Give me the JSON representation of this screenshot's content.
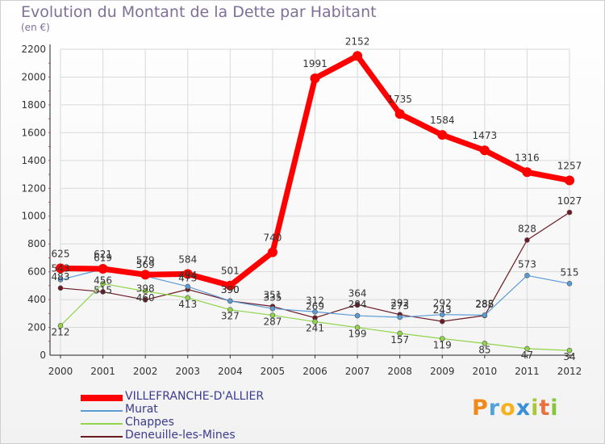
{
  "title": "Evolution du Montant de la Dette par Habitant",
  "subtitle": "(en €)",
  "brand": {
    "letters": [
      "P",
      "r",
      "o",
      "x",
      "i",
      "t",
      "i"
    ],
    "colors": [
      "#f08a1c",
      "#4ea3d8",
      "#f3b21e",
      "#3a8fd6",
      "#a8c83a",
      "#e9713b",
      "#8ac43f"
    ]
  },
  "chart_data": {
    "type": "line",
    "x": [
      "2000",
      "2001",
      "2002",
      "2003",
      "2004",
      "2005",
      "2006",
      "2007",
      "2008",
      "2009",
      "2010",
      "2011",
      "2012"
    ],
    "ylim": [
      0,
      2200
    ],
    "yticks": [
      "0",
      "200",
      "400",
      "600",
      "800",
      "1000",
      "1200",
      "1400",
      "1600",
      "1800",
      "2000",
      "2200"
    ],
    "grid": true,
    "legend_position": "bottom-left",
    "series": [
      {
        "name": "VILLEFRANCHE-D'ALLIER",
        "color": "#ff0000",
        "values": [
          625,
          621,
          579,
          584,
          501,
          740,
          1991,
          2152,
          1735,
          1584,
          1473,
          1316,
          1257
        ]
      },
      {
        "name": "Murat",
        "color": "#5b9bd5",
        "values": [
          543,
          619,
          569,
          494,
          390,
          335,
          312,
          284,
          273,
          292,
          288,
          573,
          515
        ]
      },
      {
        "name": "Chappes",
        "color": "#8fd44a",
        "values": [
          212,
          515,
          460,
          413,
          327,
          287,
          241,
          199,
          157,
          119,
          85,
          47,
          34
        ]
      },
      {
        "name": "Deneuille-les-Mines",
        "color": "#6b1a24",
        "values": [
          483,
          456,
          398,
          473,
          390,
          351,
          269,
          364,
          292,
          243,
          285,
          828,
          1027
        ]
      }
    ]
  }
}
